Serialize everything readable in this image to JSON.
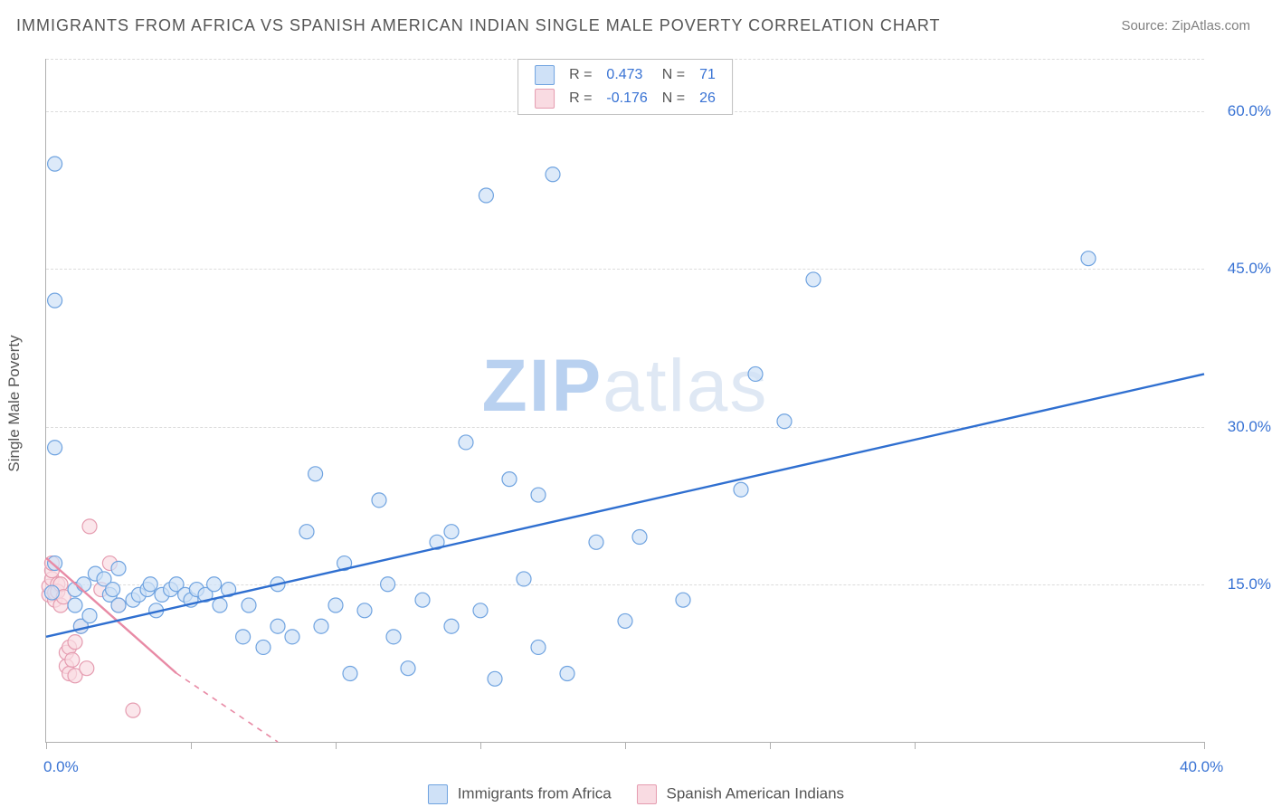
{
  "title": "IMMIGRANTS FROM AFRICA VS SPANISH AMERICAN INDIAN SINGLE MALE POVERTY CORRELATION CHART",
  "source_label": "Source: ZipAtlas.com",
  "y_axis_label": "Single Male Poverty",
  "watermark_bold": "ZIP",
  "watermark_light": "atlas",
  "chart": {
    "type": "scatter",
    "background_color": "#ffffff",
    "grid_color": "#dcdcdc",
    "axis_color": "#b0b0b0",
    "label_color": "#3973d4",
    "text_color": "#555555",
    "xlim": [
      0,
      40
    ],
    "ylim": [
      0,
      65
    ],
    "x_ticks": [
      0,
      5,
      10,
      15,
      20,
      25,
      30,
      40
    ],
    "x_tick_labels": {
      "0": "0.0%",
      "40": "40.0%"
    },
    "y_ticks": [
      15,
      30,
      45,
      60
    ],
    "y_tick_labels": [
      "15.0%",
      "30.0%",
      "45.0%",
      "60.0%"
    ],
    "marker_radius": 8,
    "marker_stroke_width": 1.2,
    "trend_line_width": 2.4,
    "title_fontsize": 18,
    "axis_label_fontsize": 17,
    "tick_fontsize": 17
  },
  "series": [
    {
      "name": "Immigrants from Africa",
      "fill_color": "#cfe1f7",
      "stroke_color": "#6fa3e0",
      "swatch_fill": "#cfe1f7",
      "swatch_stroke": "#6fa3e0",
      "r_value": "0.473",
      "n_value": "71",
      "trend": {
        "x1": 0,
        "y1": 10,
        "x2": 40,
        "y2": 35,
        "dash": "none"
      },
      "points": [
        [
          0.2,
          14.2
        ],
        [
          0.3,
          17.0
        ],
        [
          0.3,
          28.0
        ],
        [
          0.3,
          42.0
        ],
        [
          0.3,
          55.0
        ],
        [
          1.0,
          13.0
        ],
        [
          1.0,
          14.5
        ],
        [
          1.2,
          11.0
        ],
        [
          1.3,
          15.0
        ],
        [
          1.5,
          12.0
        ],
        [
          1.7,
          16.0
        ],
        [
          2.0,
          15.5
        ],
        [
          2.2,
          14.0
        ],
        [
          2.3,
          14.5
        ],
        [
          2.5,
          13.0
        ],
        [
          2.5,
          16.5
        ],
        [
          3.0,
          13.5
        ],
        [
          3.2,
          14.0
        ],
        [
          3.5,
          14.5
        ],
        [
          3.6,
          15.0
        ],
        [
          3.8,
          12.5
        ],
        [
          4.0,
          14.0
        ],
        [
          4.3,
          14.5
        ],
        [
          4.5,
          15.0
        ],
        [
          4.8,
          14.0
        ],
        [
          5.0,
          13.5
        ],
        [
          5.2,
          14.5
        ],
        [
          5.5,
          14.0
        ],
        [
          5.8,
          15.0
        ],
        [
          6.0,
          13.0
        ],
        [
          6.3,
          14.5
        ],
        [
          6.8,
          10.0
        ],
        [
          7.0,
          13.0
        ],
        [
          7.5,
          9.0
        ],
        [
          8.0,
          11.0
        ],
        [
          8.0,
          15.0
        ],
        [
          8.5,
          10.0
        ],
        [
          9.0,
          20.0
        ],
        [
          9.3,
          25.5
        ],
        [
          9.5,
          11.0
        ],
        [
          10.0,
          13.0
        ],
        [
          10.3,
          17.0
        ],
        [
          10.5,
          6.5
        ],
        [
          11.0,
          12.5
        ],
        [
          11.5,
          23.0
        ],
        [
          11.8,
          15.0
        ],
        [
          12.0,
          10.0
        ],
        [
          12.5,
          7.0
        ],
        [
          13.0,
          13.5
        ],
        [
          13.5,
          19.0
        ],
        [
          14.0,
          11.0
        ],
        [
          14.0,
          20.0
        ],
        [
          14.5,
          28.5
        ],
        [
          15.0,
          12.5
        ],
        [
          15.2,
          52.0
        ],
        [
          15.5,
          6.0
        ],
        [
          16.0,
          25.0
        ],
        [
          16.5,
          15.5
        ],
        [
          17.0,
          23.5
        ],
        [
          17.0,
          9.0
        ],
        [
          17.5,
          54.0
        ],
        [
          18.0,
          6.5
        ],
        [
          19.0,
          19.0
        ],
        [
          20.0,
          11.5
        ],
        [
          20.5,
          19.5
        ],
        [
          22.0,
          13.5
        ],
        [
          24.0,
          24.0
        ],
        [
          24.5,
          35.0
        ],
        [
          25.5,
          30.5
        ],
        [
          26.5,
          44.0
        ],
        [
          36.0,
          46.0
        ]
      ]
    },
    {
      "name": "Spanish American Indians",
      "fill_color": "#f9dbe2",
      "stroke_color": "#e59cb0",
      "swatch_fill": "#f9dbe2",
      "swatch_stroke": "#e59cb0",
      "r_value": "-0.176",
      "n_value": "26",
      "trend": {
        "x1": 0,
        "y1": 17.5,
        "x2": 8.0,
        "y2": -2.0,
        "dash_after_x": 4.5
      },
      "points": [
        [
          0.1,
          14.0
        ],
        [
          0.1,
          14.8
        ],
        [
          0.2,
          15.5
        ],
        [
          0.2,
          16.3
        ],
        [
          0.2,
          17.0
        ],
        [
          0.3,
          13.5
        ],
        [
          0.3,
          14.2
        ],
        [
          0.4,
          15.0
        ],
        [
          0.4,
          14.3
        ],
        [
          0.5,
          13.0
        ],
        [
          0.5,
          15.0
        ],
        [
          0.6,
          13.8
        ],
        [
          0.7,
          7.2
        ],
        [
          0.7,
          8.5
        ],
        [
          0.8,
          6.5
        ],
        [
          0.8,
          9.0
        ],
        [
          0.9,
          7.8
        ],
        [
          1.0,
          6.3
        ],
        [
          1.0,
          9.5
        ],
        [
          1.2,
          11.0
        ],
        [
          1.4,
          7.0
        ],
        [
          1.5,
          20.5
        ],
        [
          1.9,
          14.5
        ],
        [
          2.2,
          17.0
        ],
        [
          2.5,
          13.0
        ],
        [
          3.0,
          3.0
        ]
      ]
    }
  ],
  "legend_top": {
    "r_label": "R =",
    "n_label": "N ="
  },
  "legend_bottom": {
    "series1": "Immigrants from Africa",
    "series2": "Spanish American Indians"
  }
}
